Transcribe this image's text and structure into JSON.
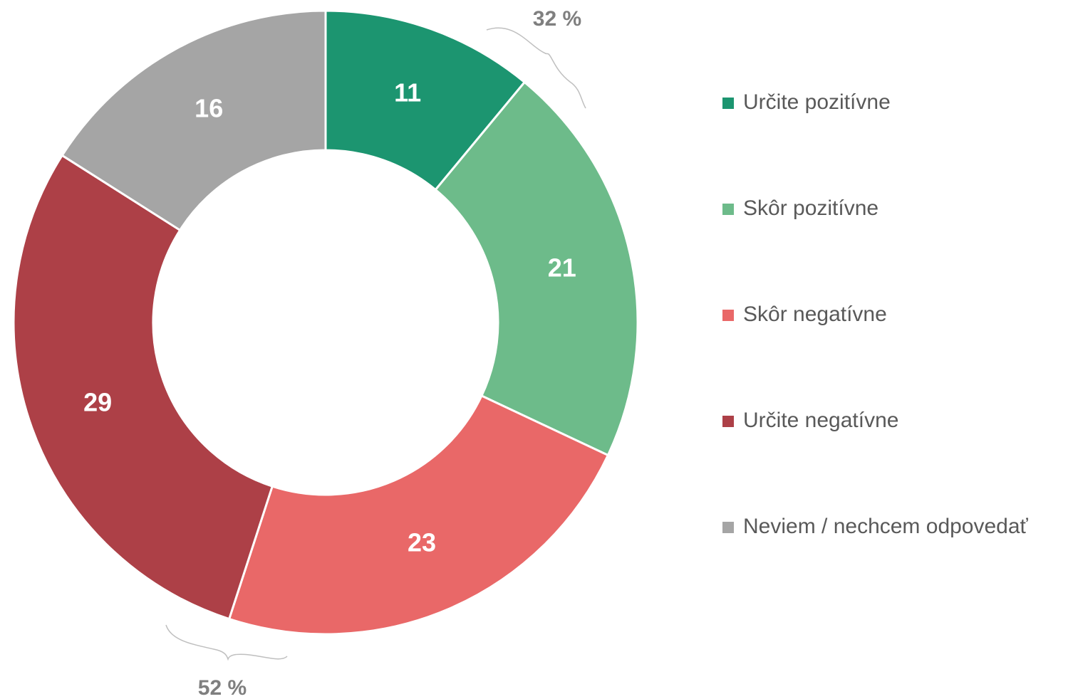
{
  "chart_data": {
    "type": "donut",
    "categories": [
      "Určite pozitívne",
      "Skôr pozitívne",
      "Skôr negatívne",
      "Určite negatívne",
      "Neviem / nechcem odpovedať"
    ],
    "values": [
      11,
      21,
      23,
      29,
      16
    ],
    "colors": [
      "#1c9570",
      "#6dbb8a",
      "#e96868",
      "#ad4047",
      "#a5a5a5"
    ],
    "legend": "right",
    "annotations": [
      "32 %",
      "52 %"
    ]
  }
}
